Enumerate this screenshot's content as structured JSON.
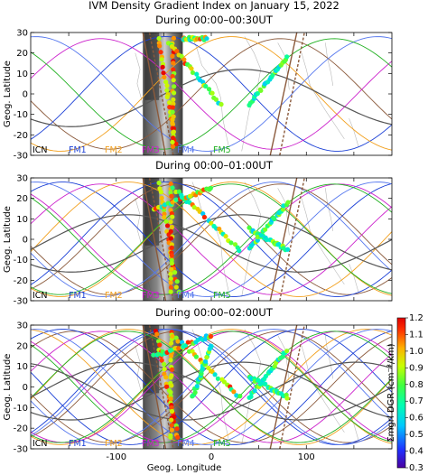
{
  "figure": {
    "title": "IVM Density Gradient Index on January 15, 2022"
  },
  "colors": {
    "ICN": "#8b5a3c",
    "FM1": "#1a3fd6",
    "FM2": "#f2a01e",
    "FM3": "#cc22cc",
    "FM4": "#5577ee",
    "FM5": "#20b020",
    "ref": "#555555",
    "coast": "#b8b8b8"
  },
  "chart_data": [
    {
      "type": "scatter",
      "title": "During 00:00–00:30UT",
      "ylabel": "Geog. Latitude",
      "xlabel": "",
      "xlim": [
        -190,
        190
      ],
      "ylim": [
        -30,
        30
      ],
      "yticks": [
        -30,
        -20,
        -10,
        0,
        10,
        20,
        30
      ],
      "legend": [
        "ICN",
        "FM1",
        "FM2",
        "FM3",
        "FM4",
        "FM5"
      ],
      "legend_placement": "bottom",
      "tracks": [
        {
          "x": -55,
          "y": 0,
          "kind": "reddense",
          "from": [
            -55,
            27
          ],
          "to": [
            -38,
            -25
          ]
        },
        {
          "x": -40,
          "y": 0,
          "kind": "reddense",
          "from": [
            -40,
            27
          ],
          "to": [
            -40,
            -25
          ]
        },
        {
          "x": -45,
          "y": 0,
          "kind": "mixed",
          "from": [
            -45,
            25
          ],
          "to": [
            10,
            -5
          ]
        },
        {
          "x": -30,
          "y": 0,
          "kind": "mixed",
          "from": [
            -30,
            27
          ],
          "to": [
            -5,
            27
          ]
        },
        {
          "x": 40,
          "y": 0,
          "kind": "greenish",
          "from": [
            40,
            -5
          ],
          "to": [
            80,
            18
          ]
        }
      ]
    },
    {
      "type": "scatter",
      "title": "During 00:00–01:00UT",
      "ylabel": "Geog. Latitude",
      "xlabel": "",
      "xlim": [
        -190,
        190
      ],
      "ylim": [
        -30,
        30
      ],
      "yticks": [
        -30,
        -20,
        -10,
        0,
        10,
        20,
        30
      ],
      "legend": [
        "ICN",
        "FM1",
        "FM2",
        "FM3",
        "FM4",
        "FM5"
      ],
      "legend_placement": "bottom",
      "tracks": [
        {
          "x": -55,
          "y": 0,
          "kind": "reddense",
          "from": [
            -55,
            27
          ],
          "to": [
            -35,
            -25
          ]
        },
        {
          "x": -42,
          "y": 0,
          "kind": "reddense",
          "from": [
            -42,
            27
          ],
          "to": [
            -42,
            -25
          ]
        },
        {
          "x": -40,
          "y": 0,
          "kind": "mixed",
          "from": [
            -40,
            25
          ],
          "to": [
            30,
            -5
          ]
        },
        {
          "x": -25,
          "y": 0,
          "kind": "mixed",
          "from": [
            -60,
            15
          ],
          "to": [
            0,
            25
          ]
        },
        {
          "x": 40,
          "y": 0,
          "kind": "greenish",
          "from": [
            40,
            5
          ],
          "to": [
            80,
            -5
          ]
        },
        {
          "x": 40,
          "y": 0,
          "kind": "greenish",
          "from": [
            40,
            -5
          ],
          "to": [
            80,
            18
          ]
        }
      ]
    },
    {
      "type": "scatter",
      "title": "During 00:00–02:00UT",
      "ylabel": "Geog. Latitude",
      "xlabel": "Geog. Longitude",
      "xlim": [
        -190,
        190
      ],
      "ylim": [
        -30,
        30
      ],
      "xticks": [
        -100,
        0,
        100
      ],
      "yticks": [
        -30,
        -20,
        -10,
        0,
        10,
        20,
        30
      ],
      "legend": [
        "ICN",
        "FM1",
        "FM2",
        "FM3",
        "FM4",
        "FM5"
      ],
      "legend_placement": "bottom",
      "colorbar": {
        "label": "Σmgrl DGR (cm⁻³/km)",
        "min": 0.3,
        "max": 1.2,
        "ticks": [
          0.3,
          0.4,
          0.5,
          0.6,
          0.7,
          0.8,
          0.9,
          1.0,
          1.1,
          1.2
        ]
      },
      "tracks": [
        {
          "x": -55,
          "y": 0,
          "kind": "reddense",
          "from": [
            -58,
            27
          ],
          "to": [
            -35,
            -25
          ]
        },
        {
          "x": -42,
          "y": 0,
          "kind": "reddense",
          "from": [
            -42,
            27
          ],
          "to": [
            -42,
            -25
          ]
        },
        {
          "x": -40,
          "y": 0,
          "kind": "mixed",
          "from": [
            -40,
            25
          ],
          "to": [
            30,
            -5
          ]
        },
        {
          "x": -25,
          "y": 0,
          "kind": "mixed",
          "from": [
            -60,
            15
          ],
          "to": [
            0,
            25
          ]
        },
        {
          "x": 40,
          "y": 0,
          "kind": "greenish",
          "from": [
            40,
            5
          ],
          "to": [
            80,
            -5
          ]
        },
        {
          "x": 40,
          "y": 0,
          "kind": "greenish",
          "from": [
            40,
            -5
          ],
          "to": [
            80,
            18
          ]
        },
        {
          "x": -10,
          "y": 0,
          "kind": "greenish",
          "from": [
            -20,
            -5
          ],
          "to": [
            0,
            20
          ]
        }
      ]
    }
  ]
}
